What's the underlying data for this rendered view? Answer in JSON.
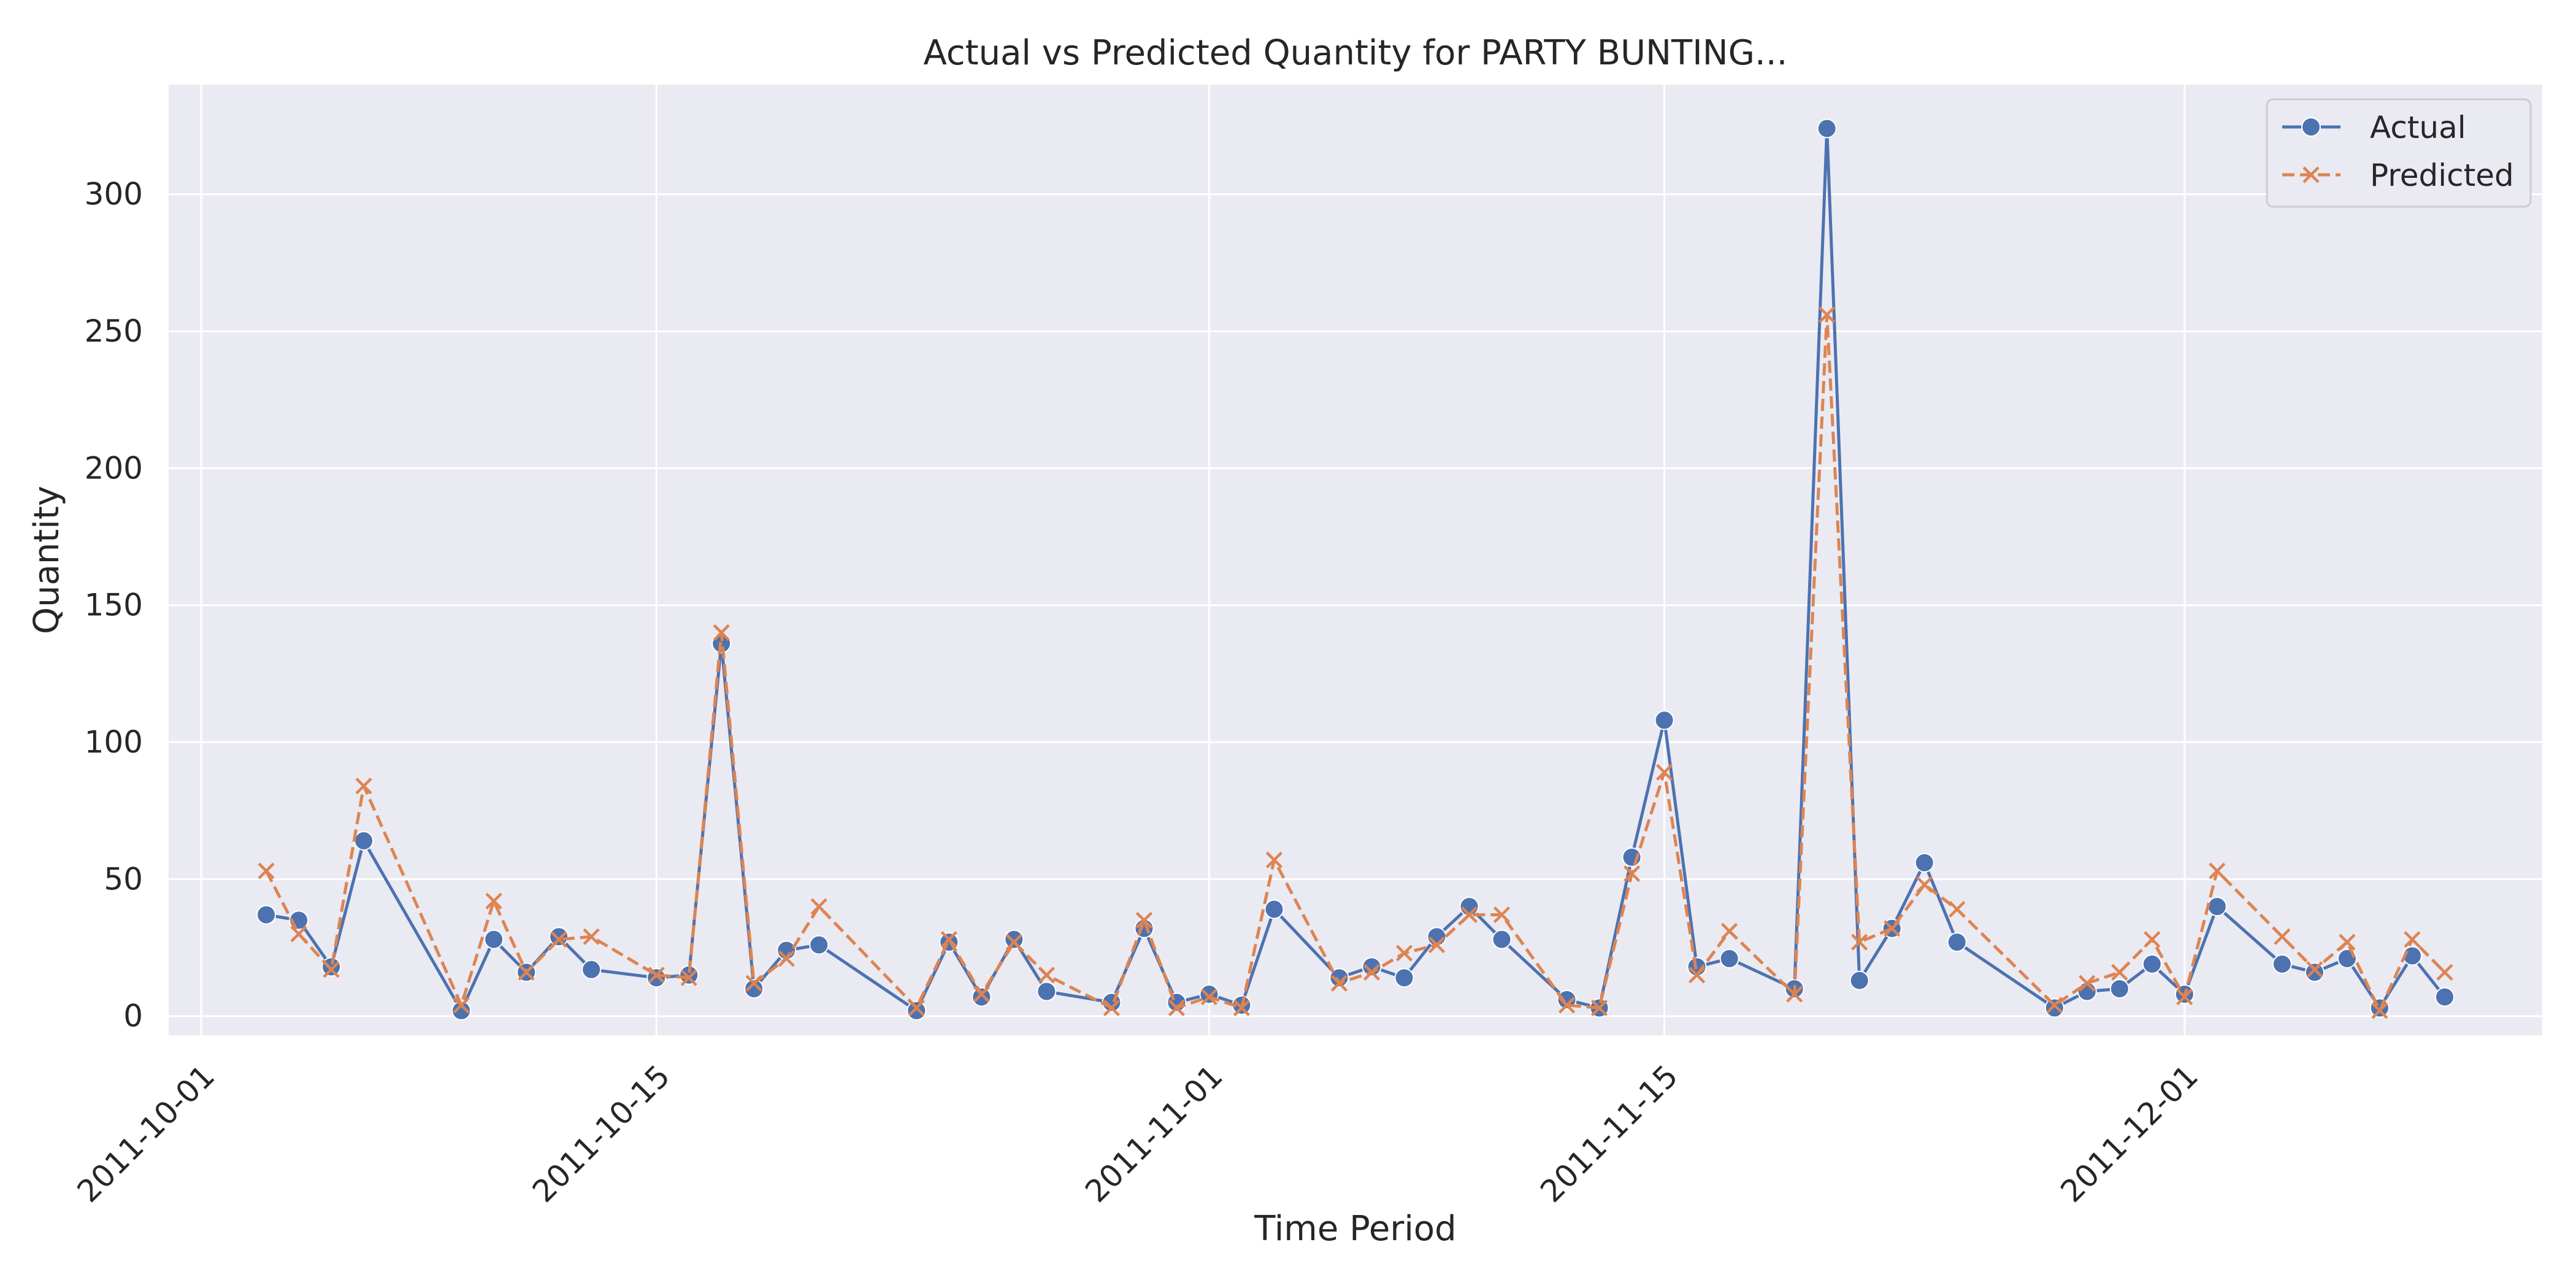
{
  "chart_data": {
    "type": "line",
    "title": "Actual vs Predicted Quantity for PARTY BUNTING...",
    "xlabel": "Time Period",
    "ylabel": "Quantity",
    "x_tick_labels": [
      "2011-10-01",
      "2011-10-15",
      "2011-11-01",
      "2011-11-15",
      "2011-12-01"
    ],
    "y_ticks": [
      0,
      50,
      100,
      150,
      200,
      250,
      300
    ],
    "ylim": [
      -7,
      340
    ],
    "xlim": [
      "2011-09-30",
      "2011-12-12"
    ],
    "grid": true,
    "legend_position": "top-right",
    "x": [
      "2011-10-03",
      "2011-10-04",
      "2011-10-05",
      "2011-10-06",
      "2011-10-09",
      "2011-10-10",
      "2011-10-11",
      "2011-10-12",
      "2011-10-13",
      "2011-10-15",
      "2011-10-16",
      "2011-10-17",
      "2011-10-18",
      "2011-10-19",
      "2011-10-20",
      "2011-10-23",
      "2011-10-24",
      "2011-10-25",
      "2011-10-26",
      "2011-10-27",
      "2011-10-29",
      "2011-10-30",
      "2011-10-31",
      "2011-11-01",
      "2011-11-02",
      "2011-11-03",
      "2011-11-05",
      "2011-11-06",
      "2011-11-07",
      "2011-11-08",
      "2011-11-09",
      "2011-11-10",
      "2011-11-12",
      "2011-11-13",
      "2011-11-14",
      "2011-11-15",
      "2011-11-16",
      "2011-11-17",
      "2011-11-19",
      "2011-11-20",
      "2011-11-21",
      "2011-11-22",
      "2011-11-23",
      "2011-11-24",
      "2011-11-27",
      "2011-11-28",
      "2011-11-29",
      "2011-11-30",
      "2011-12-01",
      "2011-12-02",
      "2011-12-04",
      "2011-12-05",
      "2011-12-06",
      "2011-12-07",
      "2011-12-08",
      "2011-12-09"
    ],
    "series": [
      {
        "name": "Actual",
        "color": "#4c72b0",
        "marker": "circle",
        "line_style": "solid",
        "values": [
          37,
          35,
          18,
          64,
          2,
          28,
          16,
          29,
          17,
          14,
          15,
          136,
          10,
          24,
          26,
          2,
          27,
          7,
          28,
          9,
          5,
          32,
          5,
          8,
          4,
          39,
          14,
          18,
          14,
          29,
          40,
          28,
          6,
          3,
          58,
          108,
          18,
          21,
          10,
          324,
          13,
          32,
          56,
          27,
          3,
          9,
          10,
          19,
          8,
          40,
          19,
          16,
          21,
          3,
          22,
          7
        ]
      },
      {
        "name": "Predicted",
        "color": "#dd8452",
        "marker": "x",
        "line_style": "dashed",
        "values": [
          53,
          30,
          17,
          84,
          4,
          42,
          16,
          28,
          29,
          15,
          14,
          140,
          12,
          21,
          40,
          3,
          28,
          8,
          27,
          15,
          3,
          35,
          3,
          7,
          3,
          57,
          12,
          16,
          23,
          26,
          37,
          37,
          4,
          3,
          52,
          89,
          15,
          31,
          8,
          256,
          27,
          32,
          48,
          39,
          4,
          12,
          16,
          28,
          7,
          53,
          29,
          17,
          27,
          2,
          28,
          16
        ]
      }
    ]
  }
}
